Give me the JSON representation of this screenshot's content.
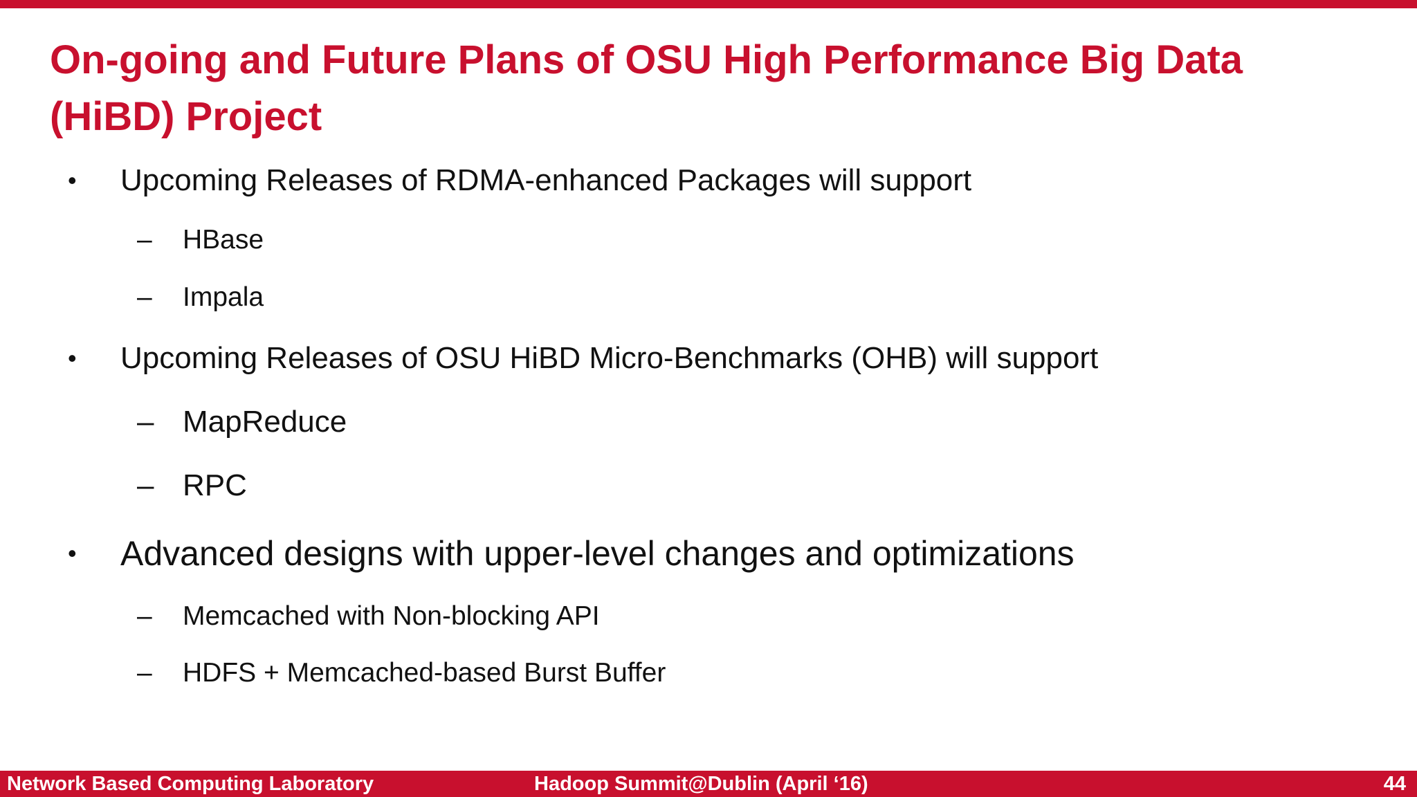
{
  "slide": {
    "title": "On-going and Future Plans of OSU High Performance Big Data (HiBD) Project",
    "bullets": [
      {
        "text": "Upcoming Releases of RDMA-enhanced Packages will support",
        "subitems": [
          "HBase",
          "Impala"
        ]
      },
      {
        "text": "Upcoming Releases of OSU HiBD Micro-Benchmarks (OHB) will support",
        "subitems": [
          "MapReduce",
          "RPC"
        ]
      },
      {
        "text": "Advanced designs with upper-level changes and optimizations",
        "subitems": [
          "Memcached with Non-blocking API",
          "HDFS + Memcached-based Burst Buffer"
        ]
      }
    ],
    "bullet_glyph": "•",
    "dash_glyph": "–"
  },
  "footer": {
    "left": "Network Based Computing Laboratory",
    "center": "Hadoop Summit@Dublin (April ‘16)",
    "page_number": "44"
  },
  "colors": {
    "accent": "#c8102e",
    "text": "#111111",
    "background": "#ffffff"
  }
}
